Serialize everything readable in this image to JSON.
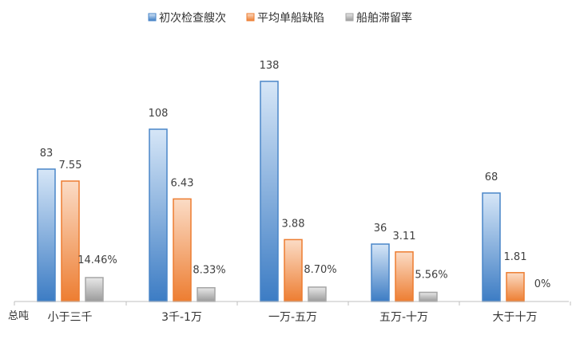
{
  "chart_data": {
    "type": "bar",
    "title": "",
    "xlabel": "总吨",
    "ylabel": "",
    "categories": [
      "小于三千",
      "3千-1万",
      "一万-五万",
      "五万-十万",
      "大于十万"
    ],
    "legend_position": "top",
    "grid": false,
    "series": [
      {
        "name": "初次检查艘次",
        "values": [
          83,
          108,
          138,
          36,
          68
        ],
        "labels": [
          "83",
          "108",
          "138",
          "36",
          "68"
        ],
        "color": "#4a86c8"
      },
      {
        "name": "平均单船缺陷",
        "values": [
          7.55,
          6.43,
          3.88,
          3.11,
          1.81
        ],
        "labels": [
          "7.55",
          "6.43",
          "3.88",
          "3.11",
          "1.81"
        ],
        "color": "#ed7d31"
      },
      {
        "name": "船舶滞留率",
        "values": [
          14.46,
          8.33,
          8.7,
          5.56,
          0
        ],
        "labels": [
          "14.46%",
          "8.33%",
          "8.70%",
          "5.56%",
          "0%"
        ],
        "color": "#a5a5a5"
      }
    ]
  }
}
